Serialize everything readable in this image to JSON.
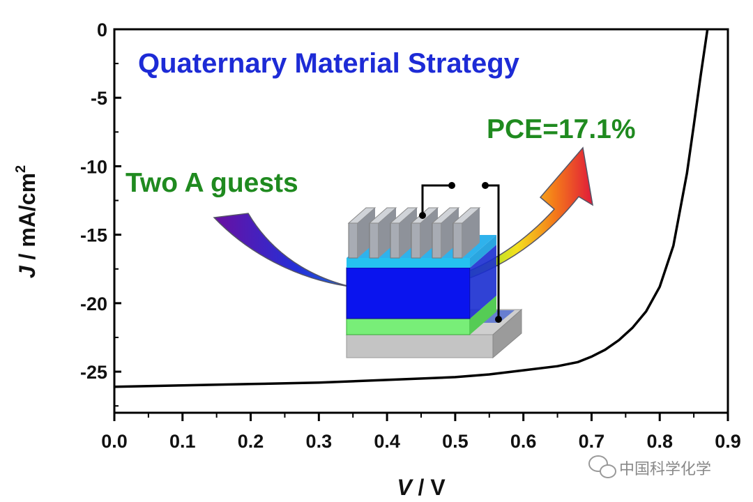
{
  "chart_data": {
    "type": "line",
    "title": "Quaternary Material Strategy",
    "xlabel_italic": "V",
    "xlabel_rest": " / V",
    "ylabel_italic": "J",
    "ylabel_rest": " / mA/cm",
    "ylabel_sup": "2",
    "xlim": [
      0.0,
      0.9
    ],
    "ylim": [
      -28,
      0
    ],
    "xticks": [
      "0.0",
      "0.1",
      "0.2",
      "0.3",
      "0.4",
      "0.5",
      "0.6",
      "0.7",
      "0.8",
      "0.9"
    ],
    "yticks": [
      "0",
      "-5",
      "-10",
      "-15",
      "-20",
      "-25"
    ],
    "grid": false,
    "series": [
      {
        "color": "#000000",
        "x": [
          0.0,
          0.1,
          0.2,
          0.3,
          0.4,
          0.5,
          0.55,
          0.6,
          0.65,
          0.68,
          0.7,
          0.72,
          0.74,
          0.76,
          0.78,
          0.8,
          0.82,
          0.84,
          0.85,
          0.86,
          0.87
        ],
        "y": [
          -26.1,
          -26.0,
          -25.9,
          -25.8,
          -25.6,
          -25.4,
          -25.2,
          -24.9,
          -24.6,
          -24.3,
          -23.9,
          -23.4,
          -22.7,
          -21.8,
          -20.6,
          -18.8,
          -15.8,
          -10.5,
          -7.0,
          -3.4,
          0.0
        ]
      }
    ],
    "annotations": {
      "pce": "PCE=17.1%",
      "guests": "Two A guests"
    },
    "colors": {
      "title": "#1d2bd6",
      "annotation": "#1f8a1f",
      "curve": "#000000"
    }
  },
  "watermark": {
    "icon": "wechat-icon",
    "text": "中国科学化学"
  }
}
